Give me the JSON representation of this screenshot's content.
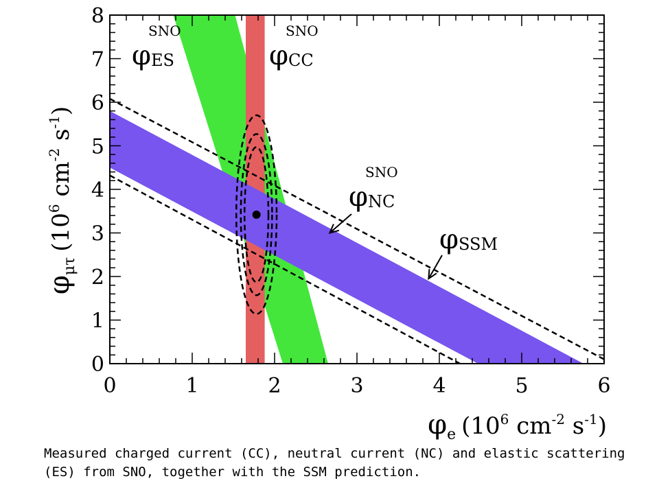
{
  "chart_data": {
    "type": "area",
    "xlabel": {
      "symbol": "φ",
      "sub": "e",
      "units": "(10",
      "exp": "6",
      "units_rest": " cm",
      "exp2": "-2",
      "units_end": " s",
      "exp3": "-1",
      "close": ")"
    },
    "ylabel": {
      "symbol": "φ",
      "sub": "μτ",
      "units": "(10",
      "exp": "6",
      "units_rest": " cm",
      "exp2": "-2",
      "units_end": " s",
      "exp3": "-1",
      "close": ")"
    },
    "xlim": [
      0,
      6
    ],
    "ylim": [
      0,
      8
    ],
    "xticks": [
      "0",
      "1",
      "2",
      "3",
      "4",
      "5",
      "6"
    ],
    "yticks": [
      "0",
      "1",
      "2",
      "3",
      "4",
      "5",
      "6",
      "7",
      "8"
    ],
    "grid": false,
    "bands": [
      {
        "name": "φ_ES^SNO",
        "kind": "diagonal",
        "color": "#44e63c",
        "polygon": [
          [
            0.77,
            8
          ],
          [
            1.52,
            8
          ],
          [
            2.65,
            0
          ],
          [
            2.1,
            0
          ]
        ]
      },
      {
        "name": "φ_CC^SNO",
        "kind": "vertical",
        "color": "#e46060",
        "x_range": [
          1.65,
          1.88
        ]
      },
      {
        "name": "φ_NC^SNO",
        "kind": "diagonal",
        "color": "#7755ee",
        "polygon": [
          [
            0,
            5.8
          ],
          [
            5.75,
            0
          ],
          [
            4.47,
            0
          ],
          [
            0,
            4.5
          ]
        ]
      }
    ],
    "ssm_lines": [
      {
        "name": "φ_SSM",
        "style": "dashed",
        "points": [
          [
            0,
            6.08
          ],
          [
            6,
            0.1
          ]
        ]
      },
      {
        "name": "φ_SSM",
        "style": "dashed",
        "points": [
          [
            0,
            4.32
          ],
          [
            4.25,
            0
          ]
        ]
      }
    ],
    "contours": [
      {
        "center": [
          1.78,
          3.42
        ],
        "rx": 0.145,
        "ry": 1.55
      },
      {
        "center": [
          1.78,
          3.42
        ],
        "rx": 0.19,
        "ry": 1.85
      },
      {
        "center": [
          1.78,
          3.42
        ],
        "rx": 0.245,
        "ry": 2.28
      }
    ],
    "best_fit": {
      "x": 1.78,
      "y": 3.42
    },
    "annotations": [
      {
        "symbol": "φ",
        "sub": "ES",
        "sup": "SNO"
      },
      {
        "symbol": "φ",
        "sub": "CC",
        "sup": "SNO"
      },
      {
        "symbol": "φ",
        "sub": "NC",
        "sup": "SNO",
        "arrow_to": [
          2.67,
          3.0
        ]
      },
      {
        "symbol": "φ",
        "sub": "SSM",
        "sup": "",
        "arrow_to": [
          3.87,
          1.95
        ]
      }
    ]
  },
  "caption": "Measured charged current (CC), neutral current (NC) and elastic scattering (ES) from SNO, together with the SSM prediction."
}
